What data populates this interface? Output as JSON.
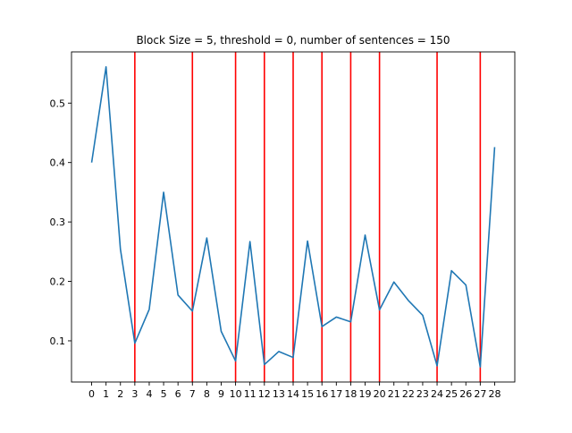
{
  "chart_data": {
    "type": "line",
    "title": "Block Size = 5, threshold = 0, number of sentences = 150",
    "xlabel": "",
    "ylabel": "",
    "x": [
      0,
      1,
      2,
      3,
      4,
      5,
      6,
      7,
      8,
      9,
      10,
      11,
      12,
      13,
      14,
      15,
      16,
      17,
      18,
      19,
      20,
      21,
      22,
      23,
      24,
      25,
      26,
      27,
      28
    ],
    "series": [
      {
        "values": [
          0.4,
          0.561,
          0.254,
          0.096,
          0.153,
          0.35,
          0.177,
          0.15,
          0.273,
          0.116,
          0.066,
          0.267,
          0.06,
          0.082,
          0.072,
          0.268,
          0.124,
          0.14,
          0.132,
          0.278,
          0.152,
          0.199,
          0.168,
          0.143,
          0.058,
          0.218,
          0.194,
          0.056,
          0.426
        ],
        "color": "#1f77b4"
      }
    ],
    "boundaries": [
      3,
      7,
      10,
      12,
      14,
      16,
      18,
      20,
      24,
      27
    ],
    "boundary_color": "#ff0000",
    "xlim": [
      -1.4,
      29.4
    ],
    "ylim": [
      0.0307,
      0.5862
    ],
    "xticks": [
      0,
      1,
      2,
      3,
      4,
      5,
      6,
      7,
      8,
      9,
      10,
      11,
      12,
      13,
      14,
      15,
      16,
      17,
      18,
      19,
      20,
      21,
      22,
      23,
      24,
      25,
      26,
      27,
      28
    ],
    "yticks": [
      0.1,
      0.2,
      0.3,
      0.4,
      0.5
    ],
    "ytick_labels": [
      "0.1",
      "0.2",
      "0.3",
      "0.4",
      "0.5"
    ],
    "grid": false,
    "legend": "none"
  }
}
